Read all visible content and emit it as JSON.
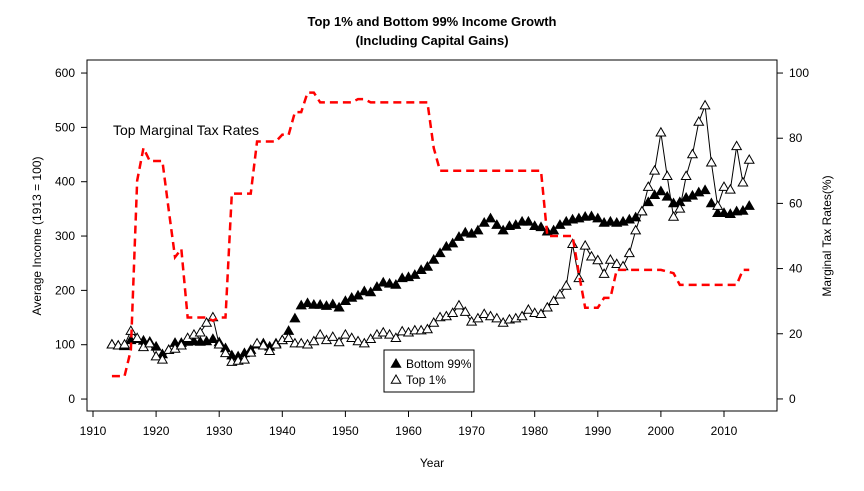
{
  "chart_data": {
    "type": "line",
    "title": "Top 1% and Bottom 99% Income Growth",
    "subtitle": "(Including Capital Gains)",
    "xlabel": "Year",
    "ylabel": "Average Income (1913 = 100)",
    "y2label": "Marginal Tax Rates(%)",
    "x": [
      1913,
      1914,
      1915,
      1916,
      1917,
      1918,
      1919,
      1920,
      1921,
      1922,
      1923,
      1924,
      1925,
      1926,
      1927,
      1928,
      1929,
      1930,
      1931,
      1932,
      1933,
      1934,
      1935,
      1936,
      1937,
      1938,
      1939,
      1940,
      1941,
      1942,
      1943,
      1944,
      1945,
      1946,
      1947,
      1948,
      1949,
      1950,
      1951,
      1952,
      1953,
      1954,
      1955,
      1956,
      1957,
      1958,
      1959,
      1960,
      1961,
      1962,
      1963,
      1964,
      1965,
      1966,
      1967,
      1968,
      1969,
      1970,
      1971,
      1972,
      1973,
      1974,
      1975,
      1976,
      1977,
      1978,
      1979,
      1980,
      1981,
      1982,
      1983,
      1984,
      1985,
      1986,
      1987,
      1988,
      1989,
      1990,
      1991,
      1992,
      1993,
      1994,
      1995,
      1996,
      1997,
      1998,
      1999,
      2000,
      2001,
      2002,
      2003,
      2004,
      2005,
      2006,
      2007,
      2008,
      2009,
      2010,
      2011,
      2012,
      2013,
      2014
    ],
    "series": [
      {
        "name": "Bottom 99%",
        "color": "#000000",
        "marker": "filled-triangle",
        "values": [
          100,
          98,
          97,
          108,
          110,
          107,
          105,
          96,
          82,
          90,
          103,
          103,
          105,
          106,
          105,
          106,
          110,
          104,
          93,
          80,
          78,
          84,
          90,
          100,
          102,
          96,
          102,
          108,
          125,
          148,
          172,
          176,
          173,
          173,
          171,
          174,
          168,
          180,
          186,
          190,
          198,
          196,
          206,
          214,
          212,
          210,
          222,
          224,
          228,
          237,
          243,
          256,
          268,
          280,
          286,
          298,
          306,
          304,
          310,
          324,
          332,
          320,
          310,
          318,
          320,
          326,
          326,
          318,
          316,
          308,
          310,
          320,
          326,
          330,
          332,
          335,
          336,
          332,
          324,
          326,
          324,
          326,
          330,
          334,
          345,
          362,
          375,
          382,
          372,
          360,
          362,
          370,
          374,
          380,
          384,
          360,
          342,
          342,
          340,
          345,
          346,
          355
        ]
      },
      {
        "name": "Top 1%",
        "color": "#000000",
        "marker": "open-triangle",
        "values": [
          100,
          98,
          100,
          125,
          112,
          95,
          102,
          78,
          72,
          90,
          92,
          98,
          112,
          118,
          122,
          140,
          150,
          100,
          84,
          68,
          70,
          72,
          85,
          102,
          98,
          88,
          100,
          108,
          112,
          102,
          102,
          100,
          106,
          118,
          108,
          114,
          104,
          118,
          112,
          106,
          102,
          110,
          118,
          122,
          118,
          112,
          124,
          122,
          126,
          126,
          128,
          140,
          150,
          152,
          158,
          172,
          160,
          142,
          148,
          156,
          152,
          148,
          140,
          146,
          148,
          152,
          164,
          158,
          156,
          168,
          180,
          192,
          208,
          285,
          222,
          282,
          262,
          255,
          230,
          256,
          248,
          244,
          268,
          310,
          345,
          390,
          420,
          490,
          410,
          335,
          350,
          410,
          450,
          510,
          540,
          435,
          355,
          390,
          385,
          465,
          398,
          440
        ]
      },
      {
        "name": "Top Marginal Tax Rates",
        "color": "#ff0000",
        "axis": "y2",
        "dashed": true,
        "values": [
          7,
          7,
          7,
          15,
          67,
          77,
          73,
          73,
          73,
          58,
          43.5,
          46,
          25,
          25,
          25,
          25,
          24,
          25,
          25,
          63,
          63,
          63,
          63,
          79,
          79,
          79,
          79,
          81.1,
          81,
          88,
          88,
          94,
          94,
          91,
          91,
          91,
          91,
          91,
          91,
          92,
          92,
          91,
          91,
          91,
          91,
          91,
          91,
          91,
          91,
          91,
          91,
          77,
          70,
          70,
          70,
          70,
          70,
          70,
          70,
          70,
          70,
          70,
          70,
          70,
          70,
          70,
          70,
          70,
          70,
          50,
          50,
          50,
          50,
          50,
          38.5,
          28,
          28,
          28,
          31,
          31,
          39.6,
          39.6,
          39.6,
          39.6,
          39.6,
          39.6,
          39.6,
          39.6,
          39.1,
          38.6,
          35,
          35,
          35,
          35,
          35,
          35,
          35,
          35,
          35,
          35,
          39.6,
          39.6
        ]
      }
    ],
    "xlim": [
      1909.05,
      2018.4
    ],
    "xticks": [
      1910,
      1920,
      1930,
      1940,
      1950,
      1960,
      1970,
      1980,
      1990,
      2000,
      2010
    ],
    "ylim": [
      -22,
      624
    ],
    "yticks": [
      0,
      100,
      200,
      300,
      400,
      500,
      600
    ],
    "y2lim": [
      -3.7,
      104
    ],
    "y2ticks": [
      0,
      20,
      40,
      60,
      80,
      100
    ],
    "legend": "bottom"
  }
}
